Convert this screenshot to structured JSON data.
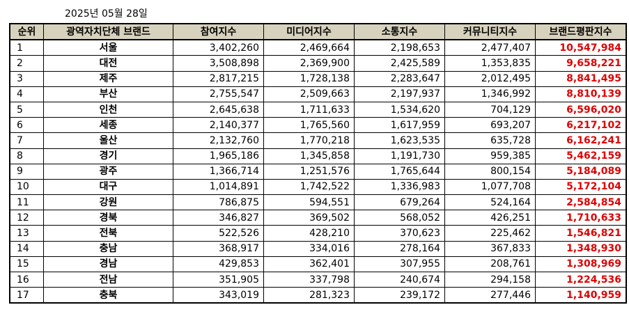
{
  "date": "2025년 05월 28일",
  "columns": [
    "순위",
    "광역자치단체 브랜드",
    "참여지수",
    "미디어지수",
    "소통지수",
    "커뮤니티지수",
    "브랜드평판지수"
  ],
  "rows": [
    {
      "rank": "1",
      "name": "서울",
      "participation": "3,402,260",
      "media": "2,469,664",
      "communication": "2,198,653",
      "community": "2,477,407",
      "reputation": "10,547,984"
    },
    {
      "rank": "2",
      "name": "대전",
      "participation": "3,508,898",
      "media": "2,369,900",
      "communication": "2,425,589",
      "community": "1,353,835",
      "reputation": "9,658,221"
    },
    {
      "rank": "3",
      "name": "제주",
      "participation": "2,817,215",
      "media": "1,728,138",
      "communication": "2,283,647",
      "community": "2,012,495",
      "reputation": "8,841,495"
    },
    {
      "rank": "4",
      "name": "부산",
      "participation": "2,755,547",
      "media": "2,509,663",
      "communication": "2,197,937",
      "community": "1,346,992",
      "reputation": "8,810,139"
    },
    {
      "rank": "5",
      "name": "인천",
      "participation": "2,645,638",
      "media": "1,711,633",
      "communication": "1,534,620",
      "community": "704,129",
      "reputation": "6,596,020"
    },
    {
      "rank": "6",
      "name": "세종",
      "participation": "2,140,377",
      "media": "1,765,560",
      "communication": "1,617,959",
      "community": "693,207",
      "reputation": "6,217,102"
    },
    {
      "rank": "7",
      "name": "울산",
      "participation": "2,132,760",
      "media": "1,770,218",
      "communication": "1,623,535",
      "community": "635,728",
      "reputation": "6,162,241"
    },
    {
      "rank": "8",
      "name": "경기",
      "participation": "1,965,186",
      "media": "1,345,858",
      "communication": "1,191,730",
      "community": "959,385",
      "reputation": "5,462,159"
    },
    {
      "rank": "9",
      "name": "광주",
      "participation": "1,366,714",
      "media": "1,251,576",
      "communication": "1,765,644",
      "community": "800,154",
      "reputation": "5,184,089"
    },
    {
      "rank": "10",
      "name": "대구",
      "participation": "1,014,891",
      "media": "1,742,522",
      "communication": "1,336,983",
      "community": "1,077,708",
      "reputation": "5,172,104"
    },
    {
      "rank": "11",
      "name": "강원",
      "participation": "786,875",
      "media": "594,551",
      "communication": "679,264",
      "community": "524,164",
      "reputation": "2,584,854"
    },
    {
      "rank": "12",
      "name": "경북",
      "participation": "346,827",
      "media": "369,502",
      "communication": "568,052",
      "community": "426,251",
      "reputation": "1,710,633"
    },
    {
      "rank": "13",
      "name": "전북",
      "participation": "522,526",
      "media": "428,210",
      "communication": "370,623",
      "community": "225,462",
      "reputation": "1,546,821"
    },
    {
      "rank": "14",
      "name": "충남",
      "participation": "368,917",
      "media": "334,016",
      "communication": "278,164",
      "community": "367,833",
      "reputation": "1,348,930"
    },
    {
      "rank": "15",
      "name": "경남",
      "participation": "429,853",
      "media": "362,401",
      "communication": "307,955",
      "community": "208,761",
      "reputation": "1,308,969"
    },
    {
      "rank": "16",
      "name": "전남",
      "participation": "351,905",
      "media": "337,798",
      "communication": "240,674",
      "community": "294,158",
      "reputation": "1,224,536"
    },
    {
      "rank": "17",
      "name": "충북",
      "participation": "343,019",
      "media": "281,323",
      "communication": "239,172",
      "community": "277,446",
      "reputation": "1,140,959"
    }
  ],
  "colors": {
    "header_bg": "#d7d2bd",
    "reputation_text": "#e00000"
  }
}
